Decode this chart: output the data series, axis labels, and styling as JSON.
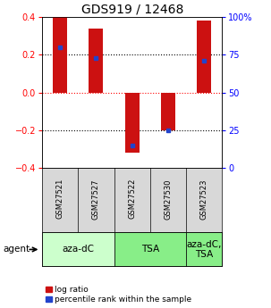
{
  "title": "GDS919 / 12468",
  "samples": [
    "GSM27521",
    "GSM27527",
    "GSM27522",
    "GSM27530",
    "GSM27523"
  ],
  "bar_values": [
    0.4,
    0.34,
    -0.32,
    -0.2,
    0.38
  ],
  "percentile_values": [
    0.24,
    0.18,
    -0.28,
    -0.2,
    0.17
  ],
  "ylim": [
    -0.4,
    0.4
  ],
  "yticks_left": [
    -0.4,
    -0.2,
    0,
    0.2,
    0.4
  ],
  "yticks_right": [
    0,
    25,
    50,
    75,
    100
  ],
  "bar_color": "#cc1111",
  "blue_color": "#2244cc",
  "group_labels": [
    "aza-dC",
    "TSA",
    "aza-dC,\nTSA"
  ],
  "group_indices": [
    [
      0,
      1
    ],
    [
      2,
      3
    ],
    [
      4
    ]
  ],
  "group_colors": [
    "#ccffcc",
    "#88ee88",
    "#88ee88"
  ],
  "agent_label": "agent",
  "legend_log_ratio": "log ratio",
  "legend_percentile": "percentile rank within the sample",
  "bar_width": 0.4,
  "title_fontsize": 10,
  "tick_fontsize": 7,
  "sample_fontsize": 6,
  "group_label_fontsize": 7.5
}
